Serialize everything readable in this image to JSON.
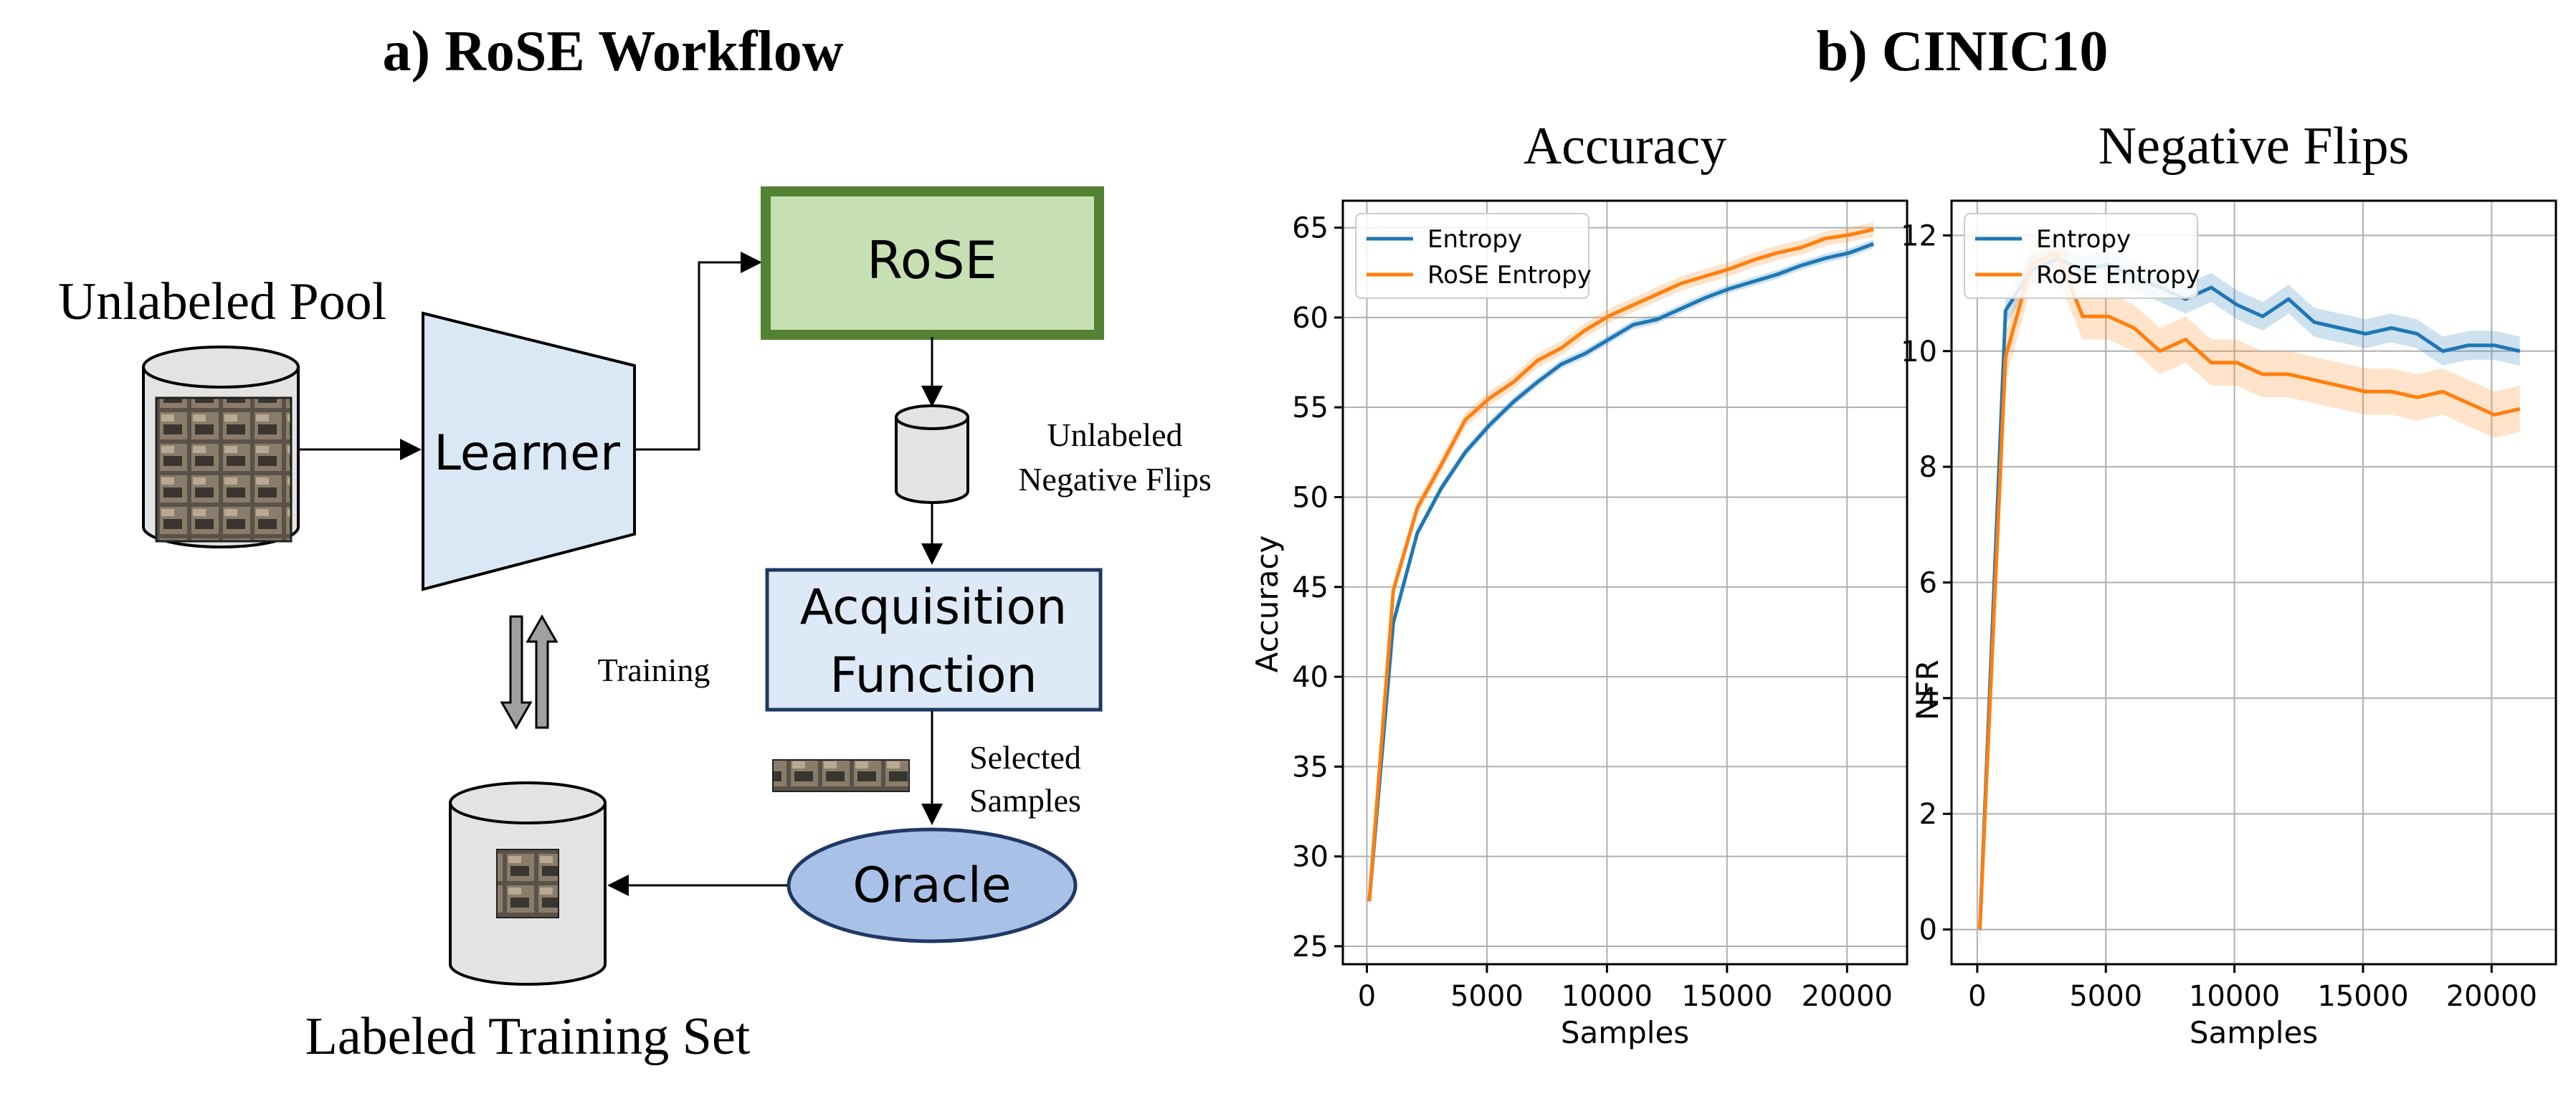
{
  "panel_a": {
    "title": "a) RoSE Workflow",
    "unlabeled_pool": "Unlabeled Pool",
    "learner": "Learner",
    "rose": "RoSE",
    "unlabeled_nf_line1": "Unlabeled",
    "unlabeled_nf_line2": "Negative Flips",
    "acq_line1": "Acquisition",
    "acq_line2": "Function",
    "training": "Training",
    "selected_line1": "Selected",
    "selected_line2": "Samples",
    "oracle": "Oracle",
    "labeled_set": "Labeled Training Set",
    "colors": {
      "rose_fill": "#c6e0b4",
      "rose_border": "#548235",
      "learner_fill": "#dae8f5",
      "acq_fill": "#dde9f6",
      "acq_border": "#1f3864",
      "oracle_fill": "#a9c1e6",
      "db_fill": "#e3e3e3"
    }
  },
  "panel_b_title": "b) CINIC10",
  "chart_data": [
    {
      "type": "line",
      "title": "Accuracy",
      "xlabel": "Samples",
      "ylabel": "Accuracy",
      "xlim": [
        -1000,
        22500
      ],
      "ylim": [
        24,
        66.5
      ],
      "xticks": [
        0,
        5000,
        10000,
        15000,
        20000
      ],
      "yticks": [
        25,
        30,
        35,
        40,
        45,
        50,
        55,
        60,
        65
      ],
      "grid": true,
      "legend_position": "top-left",
      "series": [
        {
          "name": "Entropy",
          "color": "#1f77b4",
          "x": [
            100,
            1100,
            2100,
            3100,
            4100,
            5100,
            6100,
            7100,
            8100,
            9100,
            10100,
            11100,
            12100,
            13100,
            14100,
            15100,
            16100,
            17100,
            18100,
            19100,
            20100,
            21100
          ],
          "y": [
            27.5,
            43.0,
            48.0,
            50.5,
            52.5,
            54.0,
            55.3,
            56.4,
            57.4,
            58.0,
            58.8,
            59.6,
            59.9,
            60.5,
            61.1,
            61.6,
            62.0,
            62.4,
            62.9,
            63.3,
            63.6,
            64.1
          ]
        },
        {
          "name": "RoSE Entropy",
          "color": "#ff7f0e",
          "x": [
            100,
            1100,
            2100,
            3100,
            4100,
            5100,
            6100,
            7100,
            8100,
            9100,
            10100,
            11100,
            12100,
            13100,
            14100,
            15100,
            16100,
            17100,
            18100,
            19100,
            20100,
            21100
          ],
          "y": [
            27.5,
            44.8,
            49.4,
            51.8,
            54.3,
            55.5,
            56.4,
            57.6,
            58.3,
            59.3,
            60.1,
            60.7,
            61.3,
            61.9,
            62.3,
            62.7,
            63.2,
            63.6,
            63.9,
            64.4,
            64.6,
            64.9
          ]
        }
      ]
    },
    {
      "type": "line",
      "title": "Negative Flips",
      "xlabel": "Samples",
      "ylabel": "NFR",
      "xlim": [
        -1000,
        22500
      ],
      "ylim": [
        -0.6,
        12.6
      ],
      "xticks": [
        0,
        5000,
        10000,
        15000,
        20000
      ],
      "yticks": [
        0,
        2,
        4,
        6,
        8,
        10,
        12
      ],
      "grid": true,
      "legend_position": "top-left",
      "series": [
        {
          "name": "Entropy",
          "color": "#1f77b4",
          "x": [
            100,
            1100,
            2100,
            3100,
            4100,
            5100,
            6100,
            7100,
            8100,
            9100,
            10100,
            11100,
            12100,
            13100,
            14100,
            15100,
            16100,
            17100,
            18100,
            19100,
            20100,
            21100
          ],
          "y": [
            0.0,
            10.7,
            11.4,
            11.6,
            11.4,
            11.5,
            11.3,
            11.1,
            10.9,
            11.1,
            10.8,
            10.6,
            10.9,
            10.5,
            10.4,
            10.3,
            10.4,
            10.3,
            10.0,
            10.1,
            10.1,
            10.0
          ]
        },
        {
          "name": "RoSE Entropy",
          "color": "#ff7f0e",
          "x": [
            100,
            1100,
            2100,
            3100,
            4100,
            5100,
            6100,
            7100,
            8100,
            9100,
            10100,
            11100,
            12100,
            13100,
            14100,
            15100,
            16100,
            17100,
            18100,
            19100,
            20100,
            21100
          ],
          "y": [
            0.0,
            9.9,
            11.5,
            11.7,
            10.6,
            10.6,
            10.4,
            10.0,
            10.2,
            9.8,
            9.8,
            9.6,
            9.6,
            9.5,
            9.4,
            9.3,
            9.3,
            9.2,
            9.3,
            9.1,
            8.9,
            9.0
          ]
        }
      ]
    }
  ]
}
